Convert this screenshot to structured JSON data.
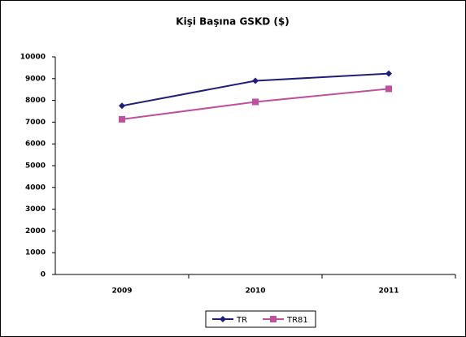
{
  "chart_data": {
    "type": "line",
    "title": "Kişi Başına GSKD ($)",
    "categories": [
      "2009",
      "2010",
      "2011"
    ],
    "series": [
      {
        "name": "TR",
        "color": "#1f1f7a",
        "marker": "diamond",
        "values": [
          7750,
          8900,
          9230
        ]
      },
      {
        "name": "TR81",
        "color": "#c0509e",
        "marker": "square",
        "values": [
          7130,
          7930,
          8530
        ]
      }
    ],
    "ylim": [
      0,
      10000
    ],
    "yticks": [
      0,
      1000,
      2000,
      3000,
      4000,
      5000,
      6000,
      7000,
      8000,
      9000,
      10000
    ],
    "grid": false,
    "legend": "bottom"
  }
}
